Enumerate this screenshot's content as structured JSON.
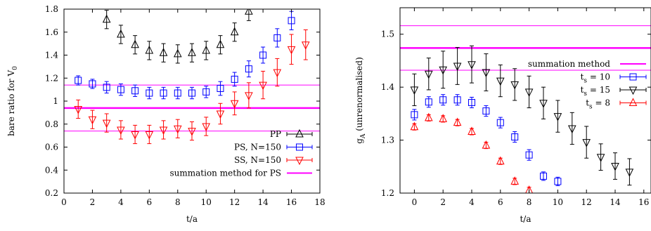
{
  "chart_data": [
    {
      "type": "scatter",
      "title": "",
      "xlabel": "t/a",
      "ylabel": "bare ratio for V",
      "ylabel_sub": "0",
      "xlim": [
        0,
        18
      ],
      "ylim": [
        0.2,
        1.8
      ],
      "xticks": [
        0,
        2,
        4,
        6,
        8,
        10,
        12,
        14,
        16,
        18
      ],
      "yticks": [
        0.2,
        0.4,
        0.6,
        0.8,
        1.0,
        1.2,
        1.4,
        1.6,
        1.8
      ],
      "ytick_labels": [
        "0.2",
        "0.4",
        "0.6",
        "0.8",
        "1",
        "1.2",
        "1.4",
        "1.6",
        "1.8"
      ],
      "grid": false,
      "legend_position": "bottom-right",
      "series": [
        {
          "name": "PP",
          "marker": "triangle-up",
          "color": "#000000",
          "x": [
            3,
            4,
            5,
            6,
            7,
            8,
            9,
            10,
            11,
            12,
            13
          ],
          "y": [
            1.71,
            1.58,
            1.49,
            1.44,
            1.42,
            1.41,
            1.42,
            1.44,
            1.49,
            1.6,
            1.78
          ],
          "err": [
            0.08,
            0.08,
            0.08,
            0.08,
            0.08,
            0.08,
            0.08,
            0.08,
            0.08,
            0.08,
            0.08
          ]
        },
        {
          "name": "PS, N=150",
          "marker": "square",
          "color": "#0000ff",
          "x": [
            1,
            2,
            3,
            4,
            5,
            6,
            7,
            8,
            9,
            10,
            11,
            12,
            13,
            14,
            15,
            16
          ],
          "y": [
            1.18,
            1.15,
            1.12,
            1.1,
            1.09,
            1.07,
            1.07,
            1.07,
            1.07,
            1.08,
            1.11,
            1.19,
            1.28,
            1.4,
            1.55,
            1.7
          ],
          "err": [
            0.04,
            0.04,
            0.05,
            0.05,
            0.05,
            0.05,
            0.05,
            0.05,
            0.05,
            0.05,
            0.06,
            0.06,
            0.07,
            0.07,
            0.08,
            0.08
          ]
        },
        {
          "name": "SS, N=150",
          "marker": "triangle-down",
          "color": "#ff0000",
          "x": [
            1,
            2,
            3,
            4,
            5,
            6,
            7,
            8,
            9,
            10,
            11,
            12,
            13,
            14,
            15,
            16,
            17
          ],
          "y": [
            0.93,
            0.84,
            0.81,
            0.75,
            0.71,
            0.71,
            0.75,
            0.76,
            0.74,
            0.78,
            0.89,
            0.98,
            1.05,
            1.14,
            1.25,
            1.45,
            1.49
          ],
          "err": [
            0.08,
            0.08,
            0.08,
            0.08,
            0.08,
            0.08,
            0.08,
            0.08,
            0.08,
            0.08,
            0.09,
            0.1,
            0.11,
            0.12,
            0.12,
            0.13,
            0.13
          ]
        }
      ],
      "bands": [
        {
          "name": "summation method for PS",
          "color": "#ff00ff",
          "center": 0.94,
          "upper": 1.14,
          "lower": 0.74
        }
      ]
    },
    {
      "type": "scatter",
      "title": "",
      "xlabel": "t/a",
      "ylabel": "g",
      "ylabel_sub": "A",
      "ylabel_suffix": " (unrenormalised)",
      "xlim": [
        -1,
        16.5
      ],
      "ylim": [
        1.2,
        1.55
      ],
      "xticks": [
        0,
        2,
        4,
        6,
        8,
        10,
        12,
        14,
        16
      ],
      "xtick_labels": [
        "0",
        "2",
        "4",
        "6",
        "8",
        "10",
        "12",
        "14",
        "16"
      ],
      "yticks": [
        1.2,
        1.3,
        1.4,
        1.5
      ],
      "ytick_labels": [
        "1.2",
        "1.3",
        "1.4",
        "1.5"
      ],
      "grid": false,
      "legend_position": "top-right",
      "series": [
        {
          "name": "t",
          "name_sub": "s",
          "name_suffix": " = 10",
          "marker": "square",
          "color": "#0000ff",
          "x": [
            0,
            1,
            2,
            3,
            4,
            5,
            6,
            7,
            8,
            9,
            10
          ],
          "y": [
            1.348,
            1.372,
            1.376,
            1.376,
            1.371,
            1.355,
            1.333,
            1.306,
            1.272,
            1.232,
            1.222
          ],
          "err": [
            0.01,
            0.01,
            0.01,
            0.01,
            0.01,
            0.01,
            0.01,
            0.01,
            0.01,
            0.008,
            0.008
          ]
        },
        {
          "name": "t",
          "name_sub": "s",
          "name_suffix": " = 15",
          "marker": "triangle-down",
          "color": "#000000",
          "x": [
            0,
            1,
            2,
            3,
            4,
            5,
            6,
            7,
            8,
            9,
            10,
            11,
            12,
            13,
            14,
            15
          ],
          "y": [
            1.395,
            1.425,
            1.433,
            1.44,
            1.443,
            1.428,
            1.412,
            1.405,
            1.391,
            1.37,
            1.345,
            1.322,
            1.296,
            1.268,
            1.251,
            1.24
          ],
          "err": [
            0.03,
            0.03,
            0.035,
            0.035,
            0.035,
            0.035,
            0.03,
            0.03,
            0.03,
            0.03,
            0.03,
            0.03,
            0.03,
            0.025,
            0.025,
            0.025
          ]
        },
        {
          "name": "t",
          "name_sub": "s",
          "name_suffix": " = 8",
          "marker": "triangle-up",
          "color": "#ff0000",
          "x": [
            0,
            1,
            2,
            3,
            4,
            5,
            6,
            7,
            8
          ],
          "y": [
            1.325,
            1.342,
            1.34,
            1.333,
            1.316,
            1.29,
            1.26,
            1.222,
            1.205
          ],
          "err": [
            0.006,
            0.006,
            0.006,
            0.006,
            0.006,
            0.006,
            0.006,
            0.006,
            0.006
          ]
        }
      ],
      "bands": [
        {
          "name": "summation method",
          "color": "#ff00ff",
          "center": 1.474,
          "upper": 1.516,
          "lower": 1.432
        }
      ]
    }
  ]
}
